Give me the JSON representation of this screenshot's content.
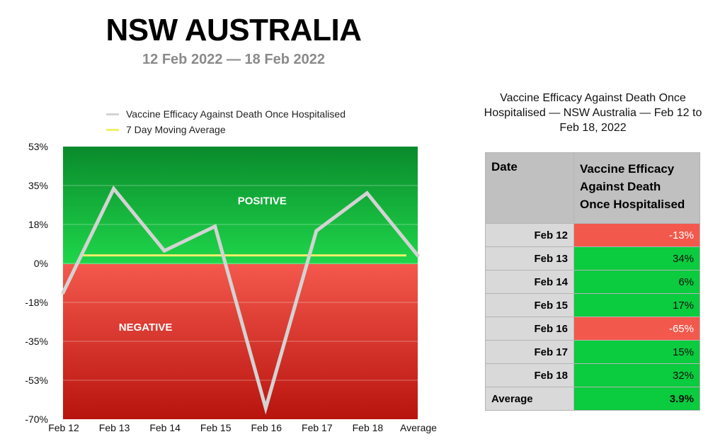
{
  "header": {
    "title": "NSW AUSTRALIA",
    "subtitle": "12 Feb 2022 — 18 Feb 2022"
  },
  "chart_data": {
    "type": "line",
    "categories": [
      "Feb 12",
      "Feb 13",
      "Feb 14",
      "Feb 15",
      "Feb 16",
      "Feb 17",
      "Feb 18",
      "Average"
    ],
    "series": [
      {
        "name": "Vaccine Efficacy Against Death Once Hospitalised",
        "values": [
          -13,
          34,
          6,
          17,
          -65,
          15,
          32,
          3.9
        ],
        "color": "#d3d3d3"
      },
      {
        "name": "7 Day Moving Average",
        "values": [
          3.9,
          3.9,
          3.9,
          3.9,
          3.9,
          3.9,
          3.9,
          3.9
        ],
        "color": "#f3f06a"
      }
    ],
    "yticks": [
      "53%",
      "35%",
      "18%",
      "0%",
      "-18%",
      "-35%",
      "-53%",
      "-70%"
    ],
    "ylim": [
      -70,
      53
    ],
    "regions": {
      "positive_label": "POSITIVE",
      "negative_label": "NEGATIVE"
    },
    "colors": {
      "positive_top": "#0a8a2c",
      "positive_bottom": "#1fd64a",
      "negative_top": "#f4584c",
      "negative_bottom": "#b8140e"
    },
    "legend_placement": "top-left",
    "grid": true
  },
  "table": {
    "title": "Vaccine Efficacy Against Death Once Hospitalised — NSW Australia — Feb 12 to Feb 18, 2022",
    "columns": [
      "Date",
      "Vaccine Efficacy Against Death Once Hospitalised"
    ],
    "rows": [
      {
        "date": "Feb 12",
        "value": "-13%",
        "sign": "neg"
      },
      {
        "date": "Feb 13",
        "value": "34%",
        "sign": "pos"
      },
      {
        "date": "Feb 14",
        "value": "6%",
        "sign": "pos"
      },
      {
        "date": "Feb 15",
        "value": "17%",
        "sign": "pos"
      },
      {
        "date": "Feb 16",
        "value": "-65%",
        "sign": "neg"
      },
      {
        "date": "Feb 17",
        "value": "15%",
        "sign": "pos"
      },
      {
        "date": "Feb 18",
        "value": "32%",
        "sign": "pos"
      }
    ],
    "average": {
      "label": "Average",
      "value": "3.9%",
      "sign": "pos"
    }
  }
}
